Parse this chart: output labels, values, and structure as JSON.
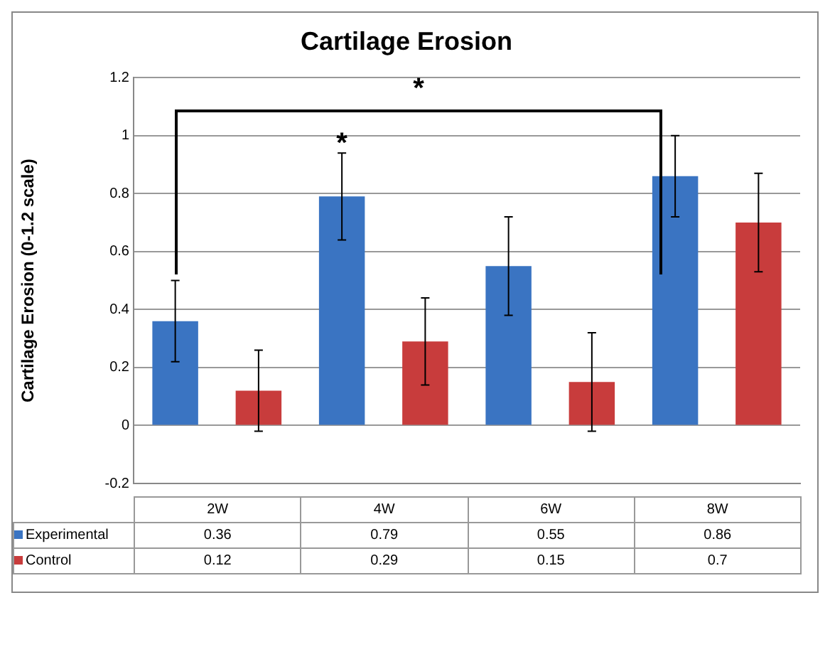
{
  "chart_data": {
    "type": "bar",
    "title": "Cartilage Erosion",
    "ylabel": "Cartilage Erosion (0-1.2 scale)",
    "categories": [
      "2W",
      "4W",
      "6W",
      "8W"
    ],
    "series": [
      {
        "name": "Experimental",
        "color": "#3a74c2",
        "values": [
          0.36,
          0.79,
          0.55,
          0.86
        ],
        "errors": [
          0.14,
          0.15,
          0.17,
          0.14
        ]
      },
      {
        "name": "Control",
        "color": "#c83c3c",
        "values": [
          0.12,
          0.29,
          0.15,
          0.7
        ],
        "errors": [
          0.14,
          0.15,
          0.17,
          0.17
        ]
      }
    ],
    "ylim": [
      -0.2,
      1.2
    ],
    "yticks": [
      -0.2,
      0,
      0.2,
      0.4,
      0.6,
      0.8,
      1,
      1.2
    ],
    "grid": "y",
    "legend": "bottom",
    "data_labels": true,
    "annotations": [
      "*",
      "*"
    ]
  }
}
